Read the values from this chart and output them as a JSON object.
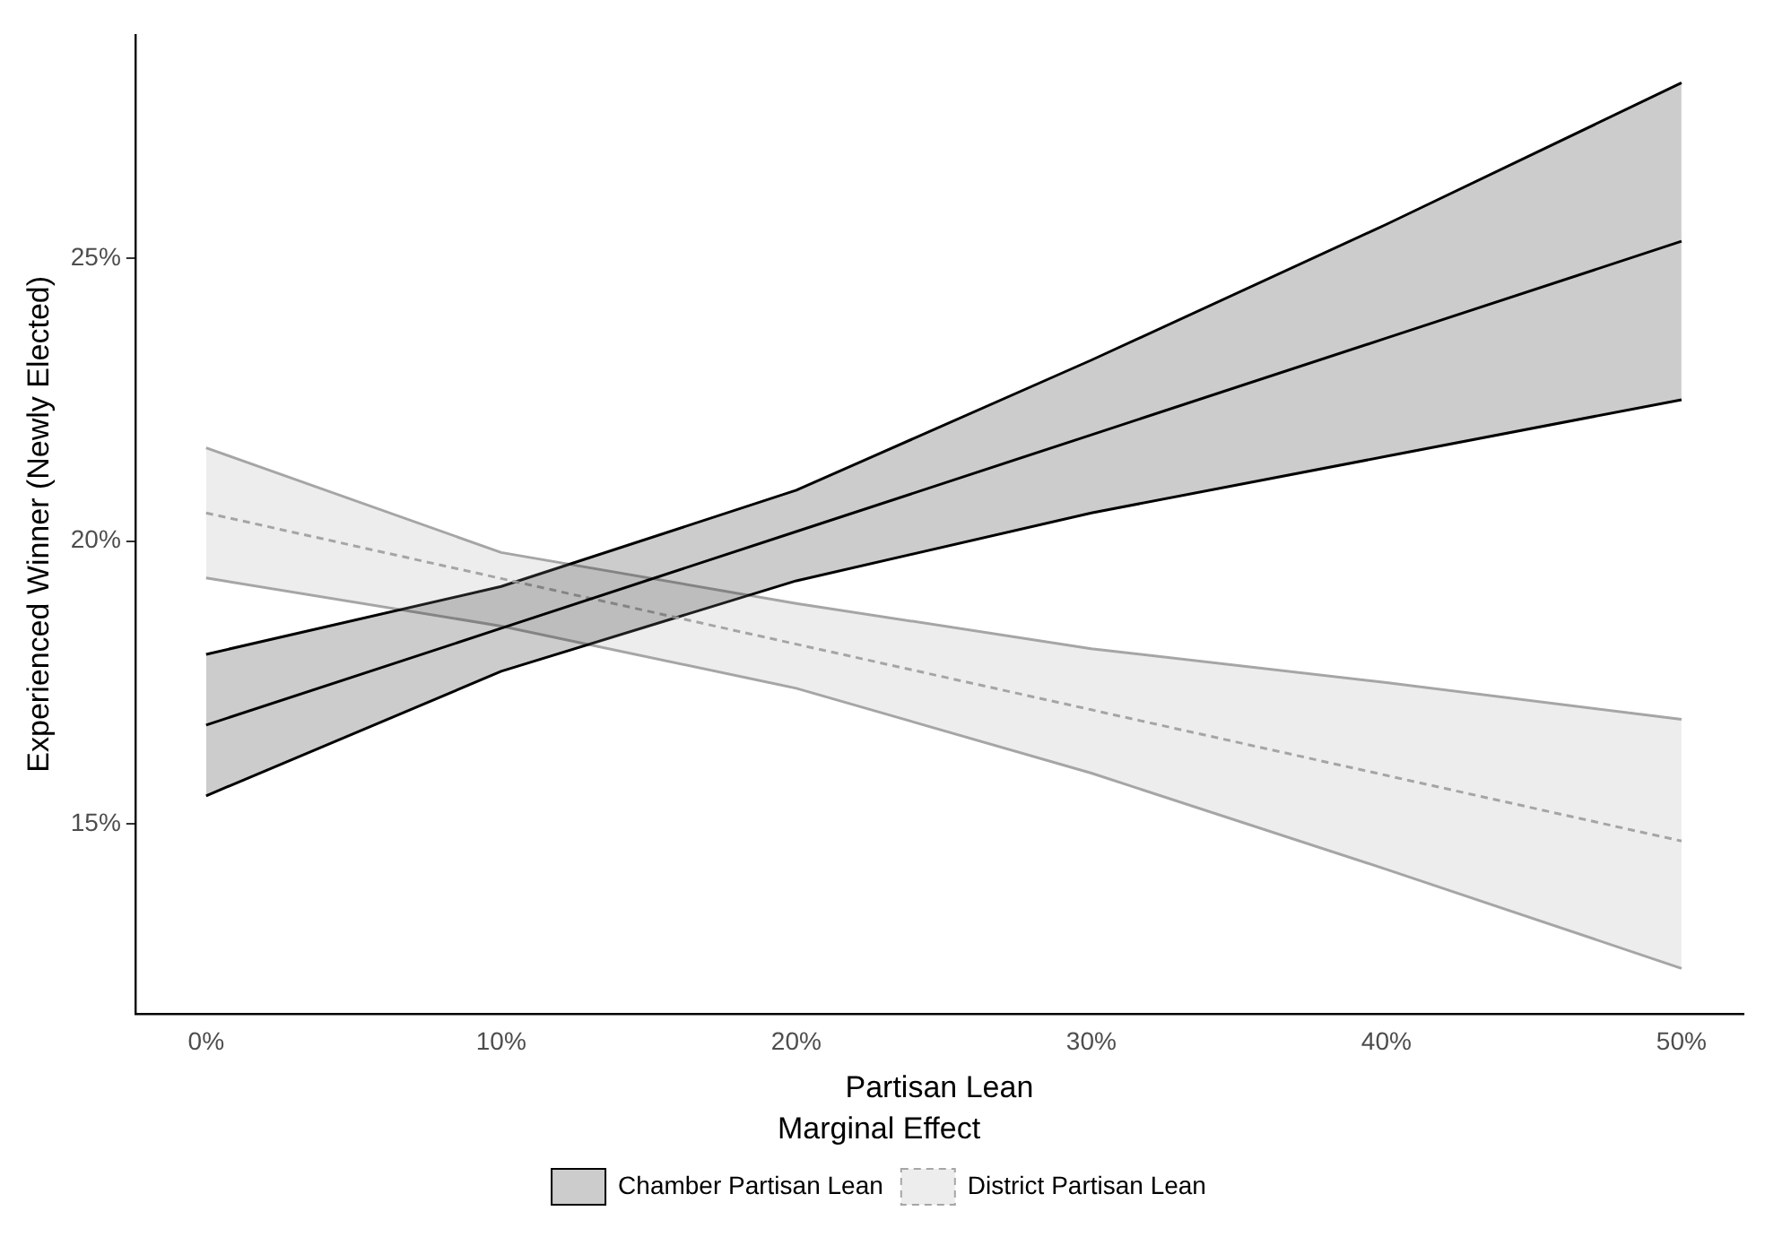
{
  "chart_data": {
    "type": "line",
    "xlabel": "Partisan Lean",
    "ylabel": "Experienced Winner (Newly Elected)",
    "legend_title": "Marginal Effect",
    "legend": "bottom",
    "grid": false,
    "marker": "none",
    "xlim": [
      -2.4,
      52.1
    ],
    "ylim": [
      11.65,
      28.95
    ],
    "xticks": [
      {
        "value": 0,
        "label": "0%"
      },
      {
        "value": 10,
        "label": "10%"
      },
      {
        "value": 20,
        "label": "20%"
      },
      {
        "value": 30,
        "label": "30%"
      },
      {
        "value": 40,
        "label": "40%"
      },
      {
        "value": 50,
        "label": "50%"
      }
    ],
    "yticks": [
      {
        "value": 15,
        "label": "15%"
      },
      {
        "value": 20,
        "label": "20%"
      },
      {
        "value": 25,
        "label": "25%"
      }
    ],
    "x": [
      0,
      10,
      20,
      30,
      40,
      50
    ],
    "series": [
      {
        "name": "Chamber Partisan Lean",
        "color": "#000000",
        "line_style": "solid",
        "values": [
          16.75,
          18.46,
          20.17,
          21.88,
          23.59,
          25.3
        ],
        "lower": [
          15.5,
          17.7,
          19.3,
          20.5,
          21.5,
          22.5
        ],
        "upper": [
          18.0,
          19.2,
          20.9,
          23.2,
          25.6,
          28.1
        ]
      },
      {
        "name": "District Partisan Lean",
        "color": "#a6a6a6",
        "line_style": "dashed",
        "values": [
          20.5,
          19.34,
          18.18,
          17.02,
          15.86,
          14.7
        ],
        "lower": [
          19.35,
          18.5,
          17.4,
          15.9,
          14.2,
          12.45
        ],
        "upper": [
          21.65,
          19.8,
          18.9,
          18.1,
          17.5,
          16.85
        ]
      },
      {
        "color": "#000000",
        "line_style": "solid",
        "values": [
          15.5,
          17.7,
          19.3,
          20.5,
          21.5,
          22.5
        ]
      },
      {
        "color": "#000000",
        "line_style": "solid",
        "values": [
          18.0,
          19.2,
          20.9,
          23.2,
          25.6,
          28.1
        ]
      },
      {
        "color": "#a6a6a6",
        "line_style": "solid",
        "values": [
          19.35,
          18.5,
          17.4,
          15.9,
          14.2,
          12.45
        ]
      },
      {
        "color": "#a6a6a6",
        "line_style": "solid",
        "values": [
          21.65,
          19.8,
          18.9,
          18.1,
          17.5,
          16.85
        ]
      }
    ]
  }
}
